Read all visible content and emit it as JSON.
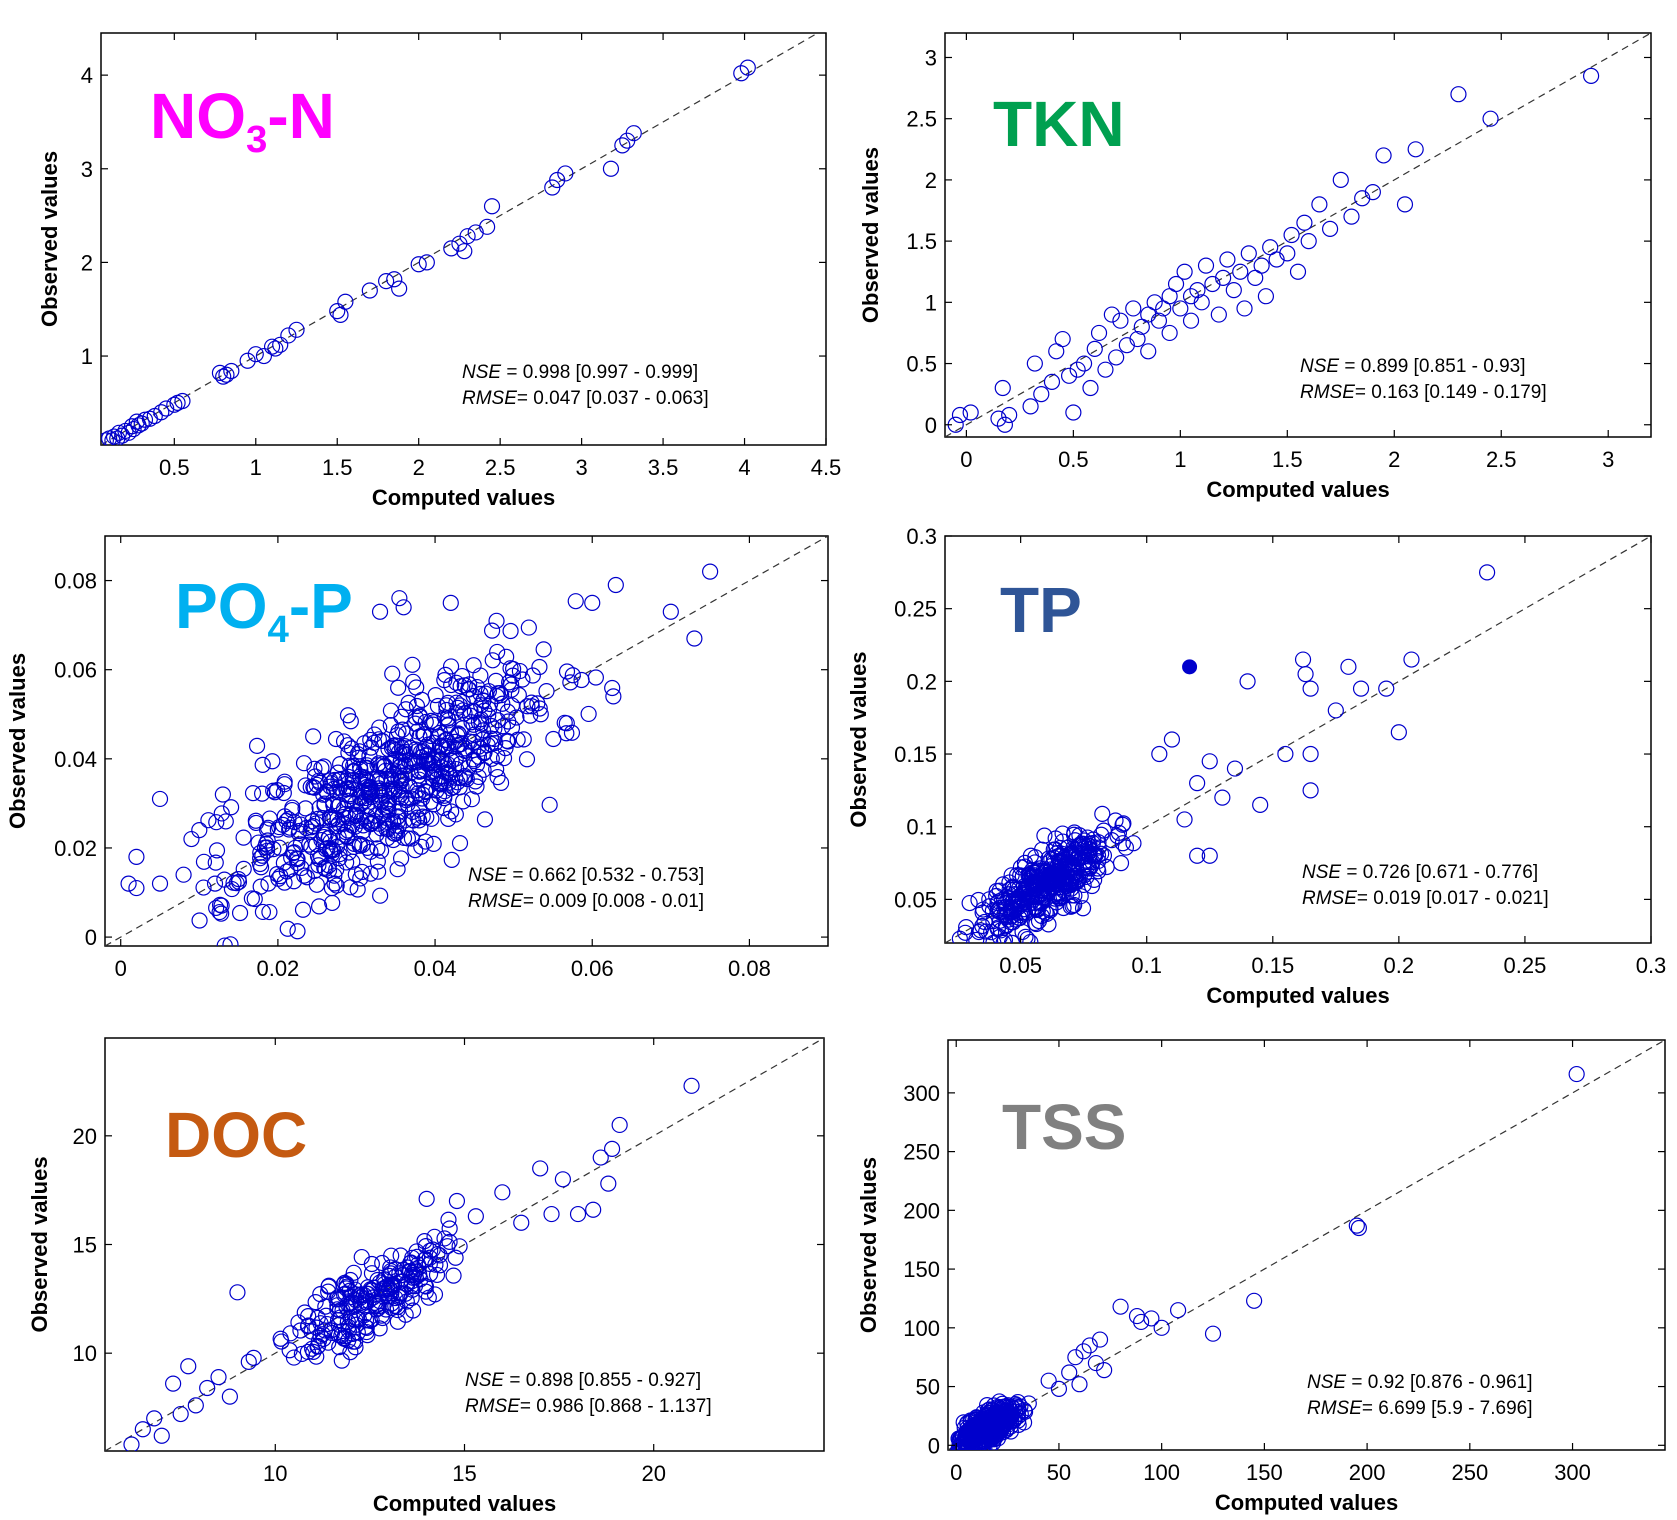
{
  "colors": {
    "marker": "#0000cc",
    "reference_line": "#333333",
    "NO3-N": "#ff00ff",
    "TKN": "#00a050",
    "PO4-P": "#00b0f0",
    "TP": "#2f5597",
    "DOC": "#c55a11",
    "TSS": "#808080"
  },
  "chart_data": [
    {
      "id": "no3n",
      "type": "scatter",
      "title": "NO3-N",
      "title_main": "NO",
      "title_sub": "3",
      "title_rest": "-N",
      "xlabel": "Computed values",
      "ylabel": "Observed values",
      "xlim": [
        0.05,
        4.5
      ],
      "ylim": [
        0.05,
        4.45
      ],
      "xticks": [
        0.5,
        1,
        1.5,
        2,
        2.5,
        3,
        3.5,
        4,
        4.5
      ],
      "xtick_labels": [
        "0.5",
        "1",
        "1.5",
        "2",
        "2.5",
        "3",
        "3.5",
        "4",
        "4.5"
      ],
      "yticks": [
        1,
        2,
        3,
        4
      ],
      "ytick_labels": [
        "1",
        "2",
        "3",
        "4"
      ],
      "reference_line": "1:1",
      "stats": {
        "nse_label": "NSE",
        "nse_text": " = 0.998  [0.997 - 0.999]",
        "rmse_label": "RMSE",
        "rmse_text": "= 0.047  [0.037 - 0.063]"
      },
      "points": [
        [
          0.08,
          0.1
        ],
        [
          0.1,
          0.12
        ],
        [
          0.12,
          0.1
        ],
        [
          0.13,
          0.14
        ],
        [
          0.15,
          0.12
        ],
        [
          0.16,
          0.18
        ],
        [
          0.18,
          0.15
        ],
        [
          0.2,
          0.2
        ],
        [
          0.22,
          0.18
        ],
        [
          0.24,
          0.25
        ],
        [
          0.25,
          0.22
        ],
        [
          0.27,
          0.3
        ],
        [
          0.28,
          0.26
        ],
        [
          0.3,
          0.28
        ],
        [
          0.32,
          0.32
        ],
        [
          0.35,
          0.33
        ],
        [
          0.38,
          0.36
        ],
        [
          0.42,
          0.4
        ],
        [
          0.45,
          0.44
        ],
        [
          0.5,
          0.48
        ],
        [
          0.52,
          0.5
        ],
        [
          0.55,
          0.52
        ],
        [
          0.8,
          0.78
        ],
        [
          0.82,
          0.8
        ],
        [
          0.85,
          0.84
        ],
        [
          0.78,
          0.82
        ],
        [
          0.95,
          0.95
        ],
        [
          1.0,
          1.02
        ],
        [
          1.05,
          1.0
        ],
        [
          1.1,
          1.1
        ],
        [
          1.12,
          1.08
        ],
        [
          1.15,
          1.12
        ],
        [
          1.2,
          1.22
        ],
        [
          1.25,
          1.28
        ],
        [
          1.5,
          1.48
        ],
        [
          1.52,
          1.44
        ],
        [
          1.55,
          1.58
        ],
        [
          1.7,
          1.7
        ],
        [
          1.8,
          1.8
        ],
        [
          1.85,
          1.82
        ],
        [
          1.88,
          1.72
        ],
        [
          2.0,
          1.98
        ],
        [
          2.05,
          2.0
        ],
        [
          2.2,
          2.15
        ],
        [
          2.25,
          2.2
        ],
        [
          2.28,
          2.12
        ],
        [
          2.3,
          2.28
        ],
        [
          2.35,
          2.32
        ],
        [
          2.42,
          2.38
        ],
        [
          2.45,
          2.6
        ],
        [
          2.82,
          2.8
        ],
        [
          2.85,
          2.88
        ],
        [
          2.9,
          2.95
        ],
        [
          3.18,
          3.0
        ],
        [
          3.25,
          3.25
        ],
        [
          3.28,
          3.3
        ],
        [
          3.32,
          3.38
        ],
        [
          3.98,
          4.02
        ],
        [
          4.02,
          4.08
        ]
      ]
    },
    {
      "id": "tkn",
      "type": "scatter",
      "title": "TKN",
      "xlabel": "Computed values",
      "ylabel": "Observed values",
      "xlim": [
        -0.1,
        3.2
      ],
      "ylim": [
        -0.1,
        3.2
      ],
      "xticks": [
        0,
        0.5,
        1,
        1.5,
        2,
        2.5,
        3
      ],
      "xtick_labels": [
        "0",
        "0.5",
        "1",
        "1.5",
        "2",
        "2.5",
        "3"
      ],
      "yticks": [
        0,
        0.5,
        1,
        1.5,
        2,
        2.5,
        3
      ],
      "ytick_labels": [
        "0",
        "0.5",
        "1",
        "1.5",
        "2",
        "2.5",
        "3"
      ],
      "reference_line": "1:1",
      "stats": {
        "nse_label": "NSE",
        "nse_text": " = 0.899  [0.851 - 0.93]",
        "rmse_label": "RMSE",
        "rmse_text": "= 0.163  [0.149 - 0.179]"
      },
      "points": [
        [
          -0.05,
          0.0
        ],
        [
          -0.03,
          0.08
        ],
        [
          0.02,
          0.1
        ],
        [
          0.15,
          0.05
        ],
        [
          0.17,
          0.3
        ],
        [
          0.18,
          0.0
        ],
        [
          0.2,
          0.08
        ],
        [
          0.3,
          0.15
        ],
        [
          0.32,
          0.5
        ],
        [
          0.35,
          0.25
        ],
        [
          0.4,
          0.35
        ],
        [
          0.42,
          0.6
        ],
        [
          0.45,
          0.7
        ],
        [
          0.48,
          0.4
        ],
        [
          0.5,
          0.1
        ],
        [
          0.52,
          0.45
        ],
        [
          0.55,
          0.5
        ],
        [
          0.58,
          0.3
        ],
        [
          0.6,
          0.62
        ],
        [
          0.62,
          0.75
        ],
        [
          0.65,
          0.45
        ],
        [
          0.68,
          0.9
        ],
        [
          0.7,
          0.55
        ],
        [
          0.72,
          0.85
        ],
        [
          0.75,
          0.65
        ],
        [
          0.78,
          0.95
        ],
        [
          0.8,
          0.7
        ],
        [
          0.82,
          0.8
        ],
        [
          0.85,
          0.9
        ],
        [
          0.85,
          0.6
        ],
        [
          0.88,
          1.0
        ],
        [
          0.9,
          0.85
        ],
        [
          0.92,
          0.95
        ],
        [
          0.95,
          1.05
        ],
        [
          0.95,
          0.75
        ],
        [
          0.98,
          1.15
        ],
        [
          1.0,
          0.95
        ],
        [
          1.02,
          1.25
        ],
        [
          1.05,
          1.05
        ],
        [
          1.05,
          0.85
        ],
        [
          1.08,
          1.1
        ],
        [
          1.1,
          1.0
        ],
        [
          1.12,
          1.3
        ],
        [
          1.15,
          1.15
        ],
        [
          1.18,
          0.9
        ],
        [
          1.2,
          1.2
        ],
        [
          1.22,
          1.35
        ],
        [
          1.25,
          1.1
        ],
        [
          1.28,
          1.25
        ],
        [
          1.3,
          0.95
        ],
        [
          1.32,
          1.4
        ],
        [
          1.35,
          1.2
        ],
        [
          1.38,
          1.3
        ],
        [
          1.4,
          1.05
        ],
        [
          1.42,
          1.45
        ],
        [
          1.45,
          1.35
        ],
        [
          1.5,
          1.4
        ],
        [
          1.52,
          1.55
        ],
        [
          1.55,
          1.25
        ],
        [
          1.58,
          1.65
        ],
        [
          1.6,
          1.5
        ],
        [
          1.65,
          1.8
        ],
        [
          1.7,
          1.6
        ],
        [
          1.75,
          2.0
        ],
        [
          1.8,
          1.7
        ],
        [
          1.85,
          1.85
        ],
        [
          1.9,
          1.9
        ],
        [
          1.95,
          2.2
        ],
        [
          2.05,
          1.8
        ],
        [
          2.1,
          2.25
        ],
        [
          2.3,
          2.7
        ],
        [
          2.45,
          2.5
        ],
        [
          2.92,
          2.85
        ]
      ]
    },
    {
      "id": "po4p",
      "type": "scatter",
      "title": "PO4-P",
      "title_main": "PO",
      "title_sub": "4",
      "title_rest": "-P",
      "xlabel": "",
      "ylabel": "Observed values",
      "xlim": [
        -0.002,
        0.09
      ],
      "ylim": [
        -0.002,
        0.09
      ],
      "xticks": [
        0,
        0.02,
        0.04,
        0.06,
        0.08
      ],
      "xtick_labels": [
        "0",
        "0.02",
        "0.04",
        "0.06",
        "0.08"
      ],
      "yticks": [
        0,
        0.02,
        0.04,
        0.06,
        0.08
      ],
      "ytick_labels": [
        "0",
        "0.02",
        "0.04",
        "0.06",
        "0.08"
      ],
      "reference_line": "1:1",
      "stats": {
        "nse_label": "NSE",
        "nse_text": " = 0.662  [0.532 - 0.753]",
        "rmse_label": "RMSE",
        "rmse_text": "= 0.009  [0.008 - 0.01]"
      },
      "generated_points": {
        "count": 700,
        "x_range": [
          0.01,
          0.065
        ],
        "center": 0.035,
        "spread": 0.011,
        "seed": 11
      },
      "points": [
        [
          0.001,
          0.012
        ],
        [
          0.002,
          0.011
        ],
        [
          0.002,
          0.018
        ],
        [
          0.005,
          0.012
        ],
        [
          0.005,
          0.031
        ],
        [
          0.008,
          0.014
        ],
        [
          0.009,
          0.022
        ],
        [
          0.01,
          0.024
        ],
        [
          0.012,
          0.012
        ],
        [
          0.013,
          0.032
        ],
        [
          0.015,
          0.013
        ],
        [
          0.06,
          0.075
        ],
        [
          0.063,
          0.079
        ],
        [
          0.07,
          0.073
        ],
        [
          0.073,
          0.067
        ],
        [
          0.075,
          0.082
        ],
        [
          0.042,
          0.075
        ],
        [
          0.036,
          0.074
        ],
        [
          0.033,
          0.073
        ]
      ]
    },
    {
      "id": "tp",
      "type": "scatter",
      "title": "TP",
      "xlabel": "Computed values",
      "ylabel": "Observed values",
      "xlim": [
        0.02,
        0.3
      ],
      "ylim": [
        0.02,
        0.3
      ],
      "xticks": [
        0.05,
        0.1,
        0.15,
        0.2,
        0.25,
        0.3
      ],
      "xtick_labels": [
        "0.05",
        "0.1",
        "0.15",
        "0.2",
        "0.25",
        "0.3"
      ],
      "yticks": [
        0.05,
        0.1,
        0.15,
        0.2,
        0.25,
        0.3
      ],
      "ytick_labels": [
        "0.05",
        "0.1",
        "0.15",
        "0.2",
        "0.25",
        "0.3"
      ],
      "reference_line": "1:1",
      "highlighted_point": [
        0.117,
        0.21
      ],
      "stats": {
        "nse_label": "NSE",
        "nse_text": " = 0.726  [0.671 - 0.776]",
        "rmse_label": "RMSE",
        "rmse_text": "= 0.019  [0.017 - 0.021]"
      },
      "generated_points": {
        "count": 420,
        "x_range": [
          0.025,
          0.11
        ],
        "center": 0.06,
        "spread": 0.014,
        "seed": 23
      },
      "points": [
        [
          0.12,
          0.13
        ],
        [
          0.125,
          0.145
        ],
        [
          0.13,
          0.12
        ],
        [
          0.135,
          0.14
        ],
        [
          0.14,
          0.2
        ],
        [
          0.145,
          0.115
        ],
        [
          0.155,
          0.15
        ],
        [
          0.162,
          0.215
        ],
        [
          0.163,
          0.205
        ],
        [
          0.165,
          0.195
        ],
        [
          0.165,
          0.15
        ],
        [
          0.165,
          0.125
        ],
        [
          0.175,
          0.18
        ],
        [
          0.18,
          0.21
        ],
        [
          0.185,
          0.195
        ],
        [
          0.195,
          0.195
        ],
        [
          0.2,
          0.165
        ],
        [
          0.205,
          0.215
        ],
        [
          0.235,
          0.275
        ],
        [
          0.11,
          0.16
        ],
        [
          0.105,
          0.15
        ],
        [
          0.115,
          0.105
        ],
        [
          0.12,
          0.08
        ],
        [
          0.125,
          0.08
        ]
      ]
    },
    {
      "id": "doc",
      "type": "scatter",
      "title": "DOC",
      "xlabel": "Computed values",
      "ylabel": "Observed values",
      "xlim": [
        5.5,
        24.5
      ],
      "ylim": [
        5.5,
        24.5
      ],
      "xticks": [
        10,
        15,
        20
      ],
      "xtick_labels": [
        "10",
        "15",
        "20"
      ],
      "yticks": [
        10,
        15,
        20
      ],
      "ytick_labels": [
        "10",
        "15",
        "20"
      ],
      "reference_line": "1:1",
      "stats": {
        "nse_label": "NSE",
        "nse_text": " = 0.898  [0.855 - 0.927]",
        "rmse_label": "RMSE",
        "rmse_text": "= 0.986  [0.868 - 1.137]"
      },
      "generated_points": {
        "count": 230,
        "x_range": [
          9,
          16
        ],
        "center": 12.5,
        "spread": 1.1,
        "seed": 37
      },
      "points": [
        [
          6.2,
          5.8
        ],
        [
          6.5,
          6.5
        ],
        [
          6.8,
          7.0
        ],
        [
          7.0,
          6.2
        ],
        [
          7.3,
          8.6
        ],
        [
          7.5,
          7.2
        ],
        [
          7.7,
          9.4
        ],
        [
          7.9,
          7.6
        ],
        [
          8.2,
          8.4
        ],
        [
          8.5,
          8.9
        ],
        [
          8.8,
          8.0
        ],
        [
          9.0,
          12.8
        ],
        [
          9.3,
          9.6
        ],
        [
          16.0,
          17.4
        ],
        [
          16.5,
          16.0
        ],
        [
          17.0,
          18.5
        ],
        [
          17.3,
          16.4
        ],
        [
          17.6,
          18.0
        ],
        [
          18.0,
          16.4
        ],
        [
          18.4,
          16.6
        ],
        [
          18.6,
          19.0
        ],
        [
          18.8,
          17.8
        ],
        [
          18.9,
          19.4
        ],
        [
          19.1,
          20.5
        ],
        [
          21.0,
          22.3
        ],
        [
          14.0,
          17.1
        ],
        [
          14.8,
          17.0
        ],
        [
          15.3,
          16.3
        ]
      ]
    },
    {
      "id": "tss",
      "type": "scatter",
      "title": "TSS",
      "xlabel": "Computed values",
      "ylabel": "Observed values",
      "xlim": [
        -4,
        345
      ],
      "ylim": [
        -4,
        345
      ],
      "xticks": [
        0,
        50,
        100,
        150,
        200,
        250,
        300
      ],
      "xtick_labels": [
        "0",
        "50",
        "100",
        "150",
        "200",
        "250",
        "300"
      ],
      "yticks": [
        0,
        50,
        100,
        150,
        200,
        250,
        300
      ],
      "ytick_labels": [
        "0",
        "50",
        "100",
        "150",
        "200",
        "250",
        "300"
      ],
      "reference_line": "1:1",
      "stats": {
        "nse_label": "NSE",
        "nse_text": " = 0.92  [0.876 - 0.961]",
        "rmse_label": "RMSE",
        "rmse_text": "= 6.699  [5.9 - 7.696]"
      },
      "generated_points": {
        "count": 380,
        "x_range": [
          1,
          40
        ],
        "center": 14,
        "spread": 9,
        "seed": 51
      },
      "points": [
        [
          45,
          55
        ],
        [
          50,
          48
        ],
        [
          55,
          62
        ],
        [
          58,
          75
        ],
        [
          60,
          52
        ],
        [
          62,
          80
        ],
        [
          65,
          85
        ],
        [
          68,
          70
        ],
        [
          70,
          90
        ],
        [
          72,
          64
        ],
        [
          80,
          118
        ],
        [
          88,
          110
        ],
        [
          90,
          105
        ],
        [
          95,
          108
        ],
        [
          100,
          100
        ],
        [
          108,
          115
        ],
        [
          125,
          95
        ],
        [
          145,
          123
        ],
        [
          195,
          187
        ],
        [
          196,
          185
        ],
        [
          302,
          316
        ]
      ]
    }
  ]
}
